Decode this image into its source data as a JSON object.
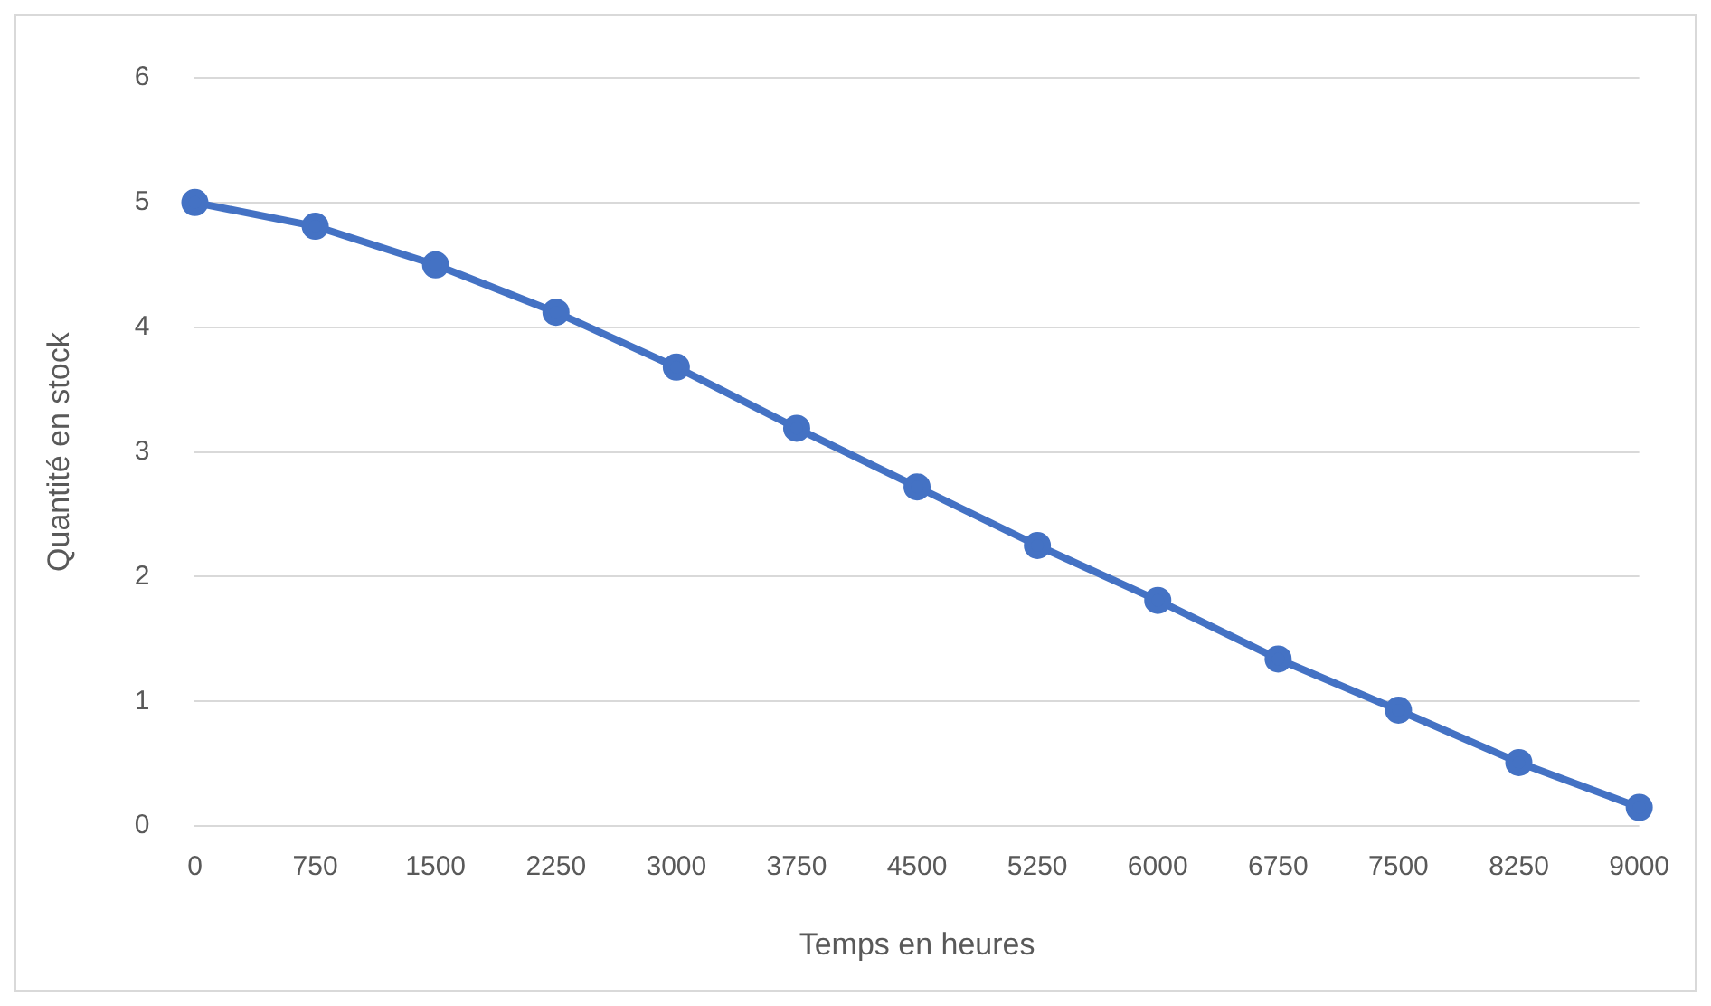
{
  "chart_data": {
    "type": "line",
    "xlabel": "Temps en heures",
    "ylabel": "Quantité en stock",
    "categories": [
      "0",
      "750",
      "1500",
      "2250",
      "3000",
      "3750",
      "4500",
      "5250",
      "6000",
      "6750",
      "7500",
      "8250",
      "9000"
    ],
    "series": [
      {
        "color": "#4472c4",
        "values": [
          5.0,
          4.81,
          4.5,
          4.12,
          3.68,
          3.19,
          2.72,
          2.25,
          1.81,
          1.34,
          0.93,
          0.51,
          0.15
        ]
      }
    ],
    "ylim": [
      0,
      6
    ],
    "yticks": [
      0,
      1,
      2,
      3,
      4,
      5,
      6
    ],
    "grid": "y",
    "legend": false,
    "marker": "circle",
    "line_style": "solid"
  }
}
